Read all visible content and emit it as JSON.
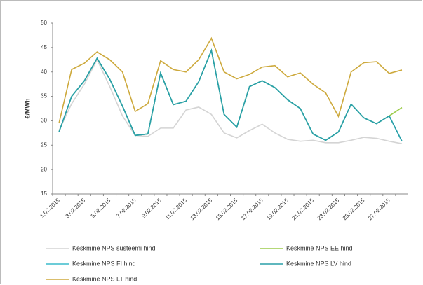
{
  "chart_data": {
    "type": "line",
    "y_label": "€/MWh",
    "categories": [
      "1.02.2015",
      null,
      "3.02.2015",
      null,
      "5.02.2015",
      null,
      "7.02.2015",
      null,
      "9.02.2015",
      null,
      "11.02.2015",
      null,
      "13.02.2015",
      null,
      "15.02.2015",
      null,
      "17.02.2015",
      null,
      "19.02.2015",
      null,
      "21.02.2015",
      null,
      "23.02.2015",
      null,
      "25.02.2015",
      null,
      "27.02.2015",
      null
    ],
    "series": [
      {
        "name": "Keskmine NPS süsteemi hind",
        "color": "#d4d4d4",
        "values": [
          28,
          33.5,
          37.5,
          42.5,
          37,
          31,
          27,
          26.8,
          28.5,
          28.5,
          32.2,
          32.8,
          31.3,
          27.5,
          26.5,
          28,
          29.3,
          27.5,
          26.2,
          25.8,
          26,
          25.5,
          25.5,
          26,
          26.6,
          26.4,
          25.8,
          25.3
        ]
      },
      {
        "name": "Keskmine NPS EE hind",
        "color": "#9ccc4a",
        "values": [
          27.7,
          35,
          38.2,
          42.8,
          38.5,
          33,
          27,
          27.3,
          39.8,
          33.3,
          34,
          38,
          44.4,
          31.3,
          28.7,
          37,
          38.2,
          36.8,
          34.3,
          32.5,
          27.3,
          26,
          27.7,
          33.4,
          30.6,
          29.4,
          31,
          32.7
        ]
      },
      {
        "name": "Keskmine NPS FI hind",
        "color": "#3bbccc",
        "values": [
          27.7,
          35,
          38.2,
          42.8,
          38.5,
          33,
          27,
          27.3,
          39.8,
          33.3,
          34,
          38,
          44.4,
          31.3,
          28.7,
          37,
          38.2,
          36.8,
          34.3,
          32.5,
          27.3,
          26,
          27.7,
          33.4,
          30.6,
          29.4,
          31,
          25.8
        ]
      },
      {
        "name": "Keskmine NPS LV hind",
        "color": "#2a9fa8",
        "values": [
          27.7,
          35,
          38.2,
          42.8,
          38.5,
          33,
          27,
          27.3,
          39.8,
          33.3,
          34,
          38,
          44.4,
          31.3,
          28.7,
          37,
          38.2,
          36.8,
          34.3,
          32.5,
          27.3,
          26,
          27.7,
          33.4,
          30.6,
          29.4,
          31,
          25.8
        ]
      },
      {
        "name": "Keskmine NPS LT hind",
        "color": "#cda93c",
        "values": [
          29.5,
          40.5,
          41.8,
          44.1,
          42.5,
          40,
          31.9,
          33.5,
          42.3,
          40.5,
          40,
          42.5,
          46.9,
          40,
          38.6,
          39.5,
          41,
          41.3,
          39,
          39.8,
          37.5,
          35.7,
          30.9,
          40,
          41.9,
          42.1,
          39.7,
          40.4
        ]
      }
    ],
    "ylim": [
      15,
      50
    ],
    "yticks": [
      15,
      20,
      25,
      30,
      35,
      40,
      45,
      50
    ]
  }
}
